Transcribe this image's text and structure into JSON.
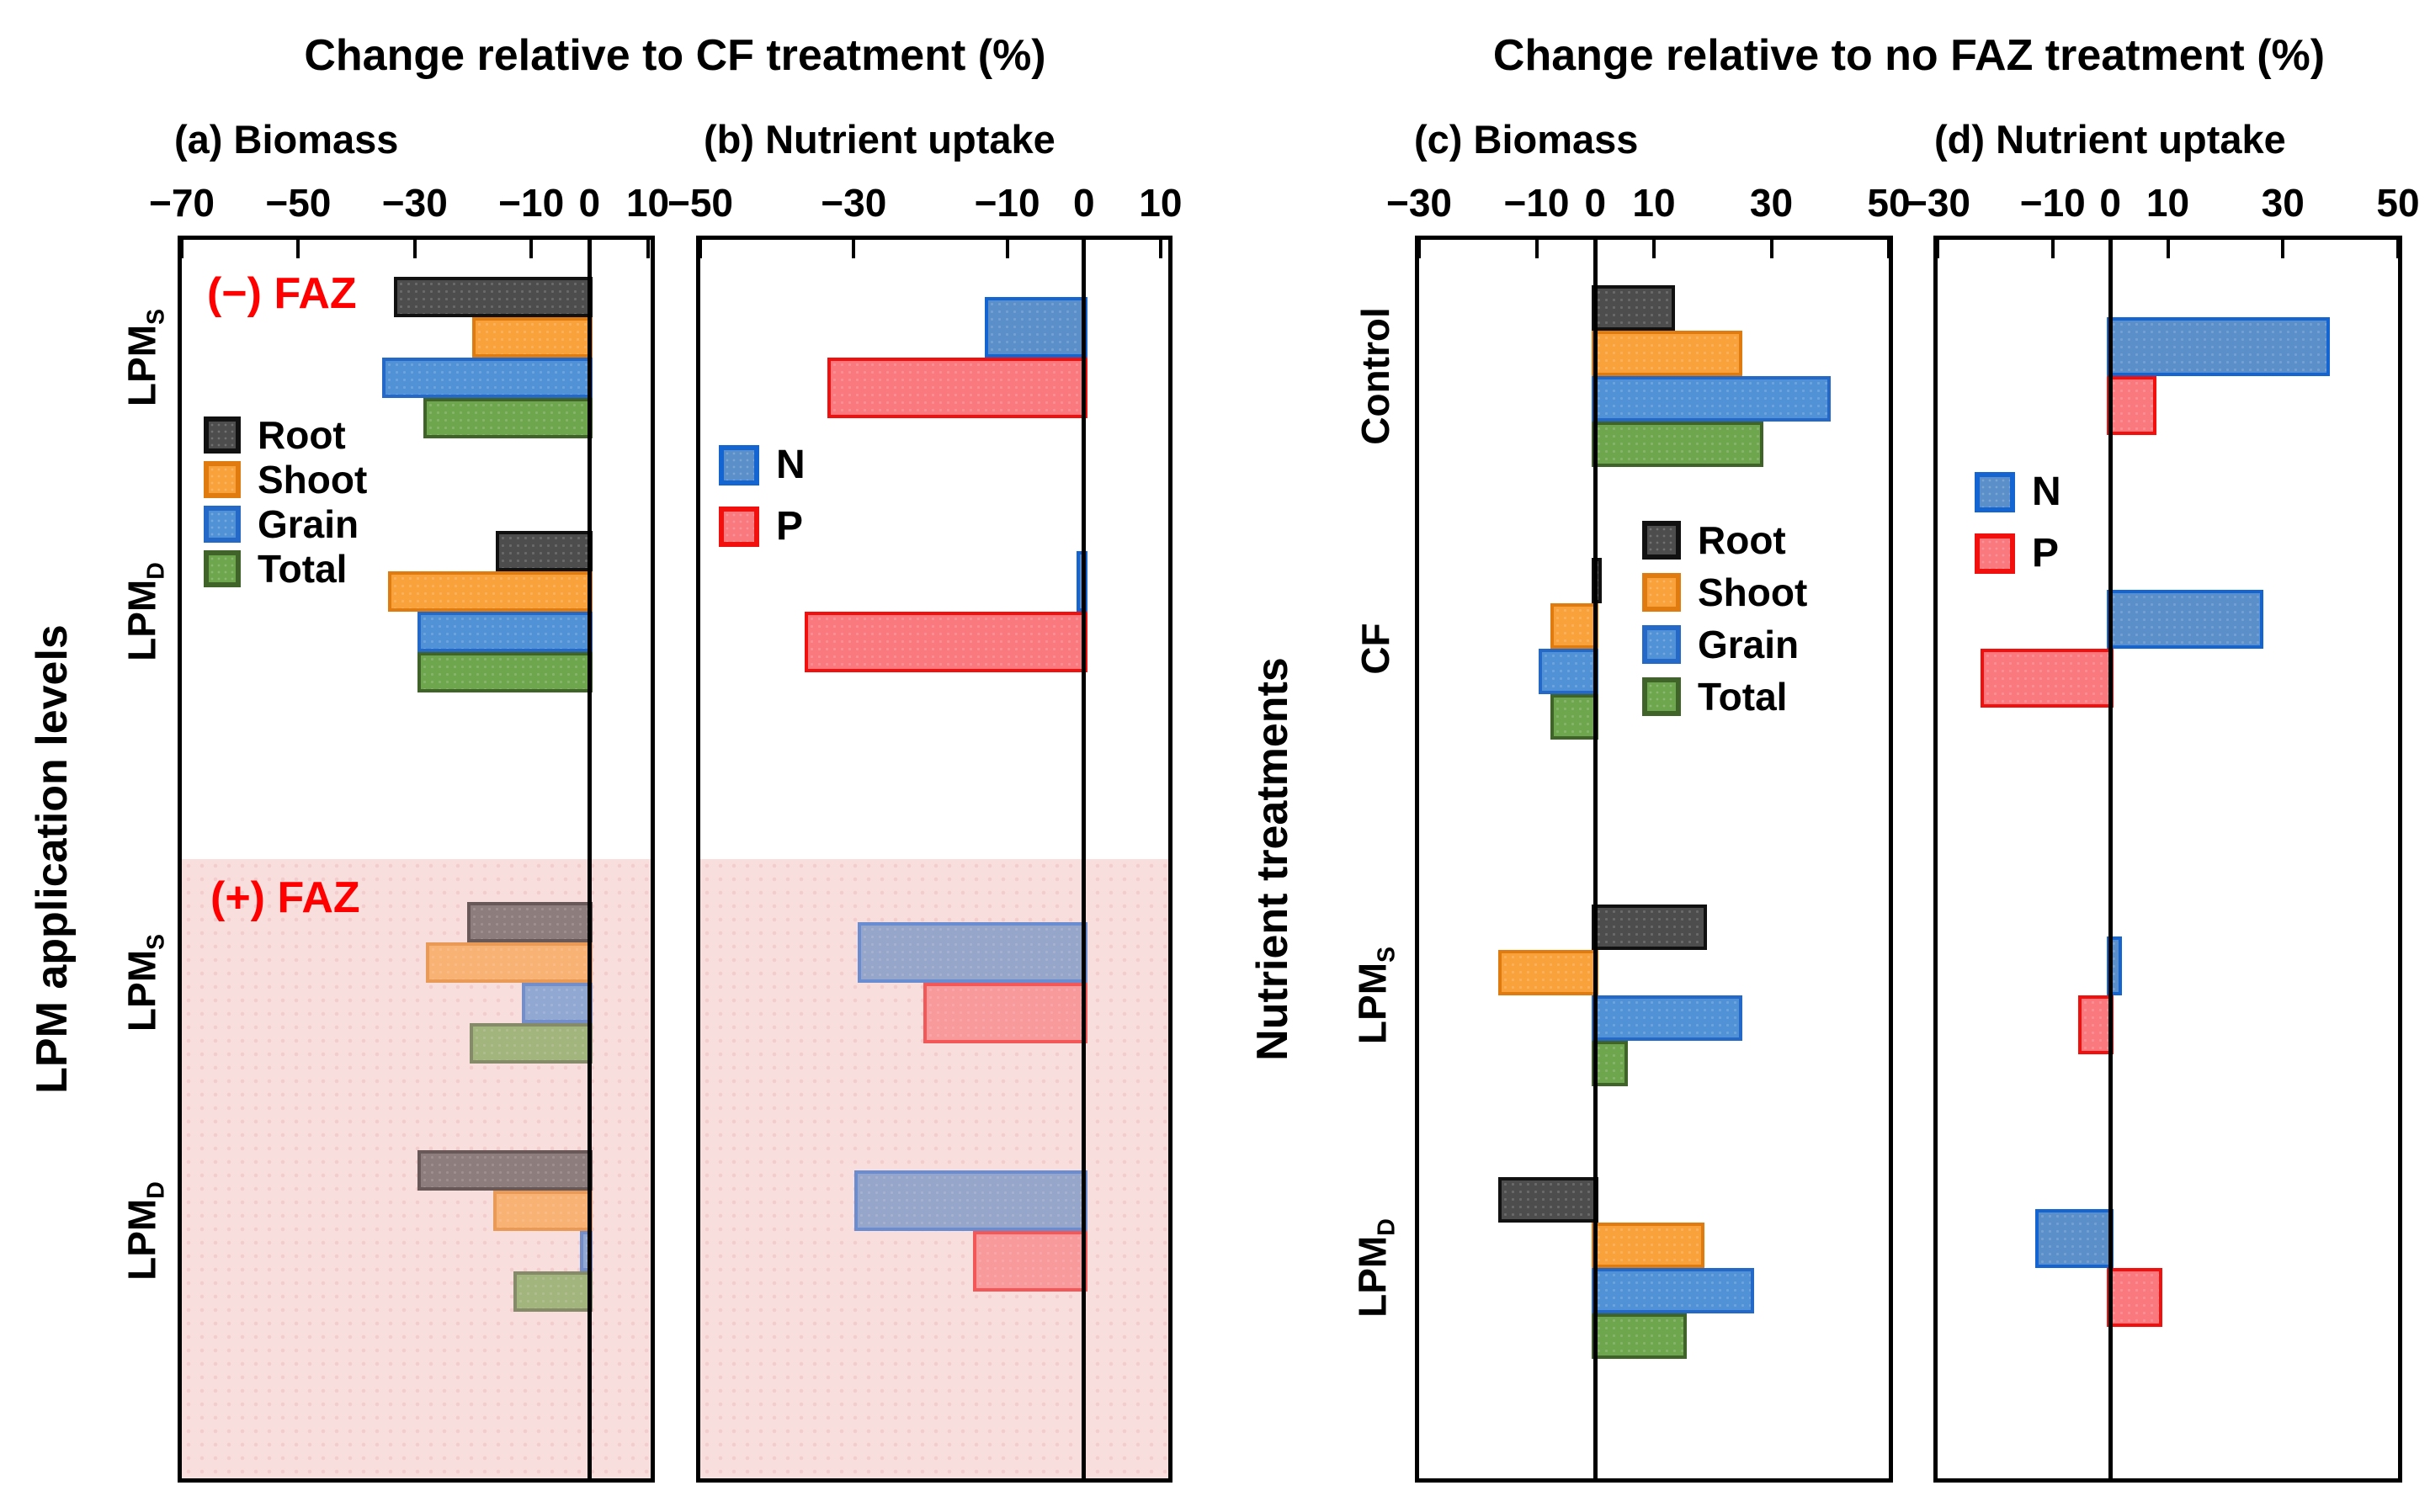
{
  "figure": {
    "title_left": "Change relative to CF treatment (%)",
    "title_right": "Change relative to no FAZ treatment (%)",
    "ylabel_left": "LPM application levels",
    "ylabel_right": "Nutrient treatments",
    "faz_minus_label": "(−) FAZ",
    "faz_plus_label": "(+) FAZ"
  },
  "colors": {
    "Root": {
      "fill": "#4d4d4d",
      "edge": "#111111"
    },
    "Shoot": {
      "fill": "#f9a23c",
      "edge": "#e07b10"
    },
    "Grain": {
      "fill": "#5192d6",
      "edge": "#2468c8"
    },
    "Total": {
      "fill": "#6ea64d",
      "edge": "#40632a"
    },
    "N": {
      "fill": "#5b8fc9",
      "edge": "#1464d2"
    },
    "P": {
      "fill": "#f9797e",
      "edge": "#f2100f"
    },
    "shaded_region": "#fbe9e9",
    "annotation_red": "#ff0000"
  },
  "chart_data": [
    {
      "id": "a",
      "label": "(a) Biomass",
      "type": "bar",
      "orientation": "horizontal",
      "group_title": "Change relative to CF treatment (%)",
      "xlim": [
        -70,
        10.5
      ],
      "ticks": [
        -70,
        -50,
        -30,
        -10,
        0,
        10
      ],
      "categories": [
        {
          "text": "LPM",
          "sub": "S",
          "group": "(−) FAZ"
        },
        {
          "text": "LPM",
          "sub": "D",
          "group": "(−) FAZ"
        },
        {
          "text": "LPM",
          "sub": "S",
          "group": "(+) FAZ"
        },
        {
          "text": "LPM",
          "sub": "D",
          "group": "(+) FAZ"
        }
      ],
      "series": [
        {
          "name": "Root",
          "values": [
            -33,
            -15.5,
            -20.5,
            -29
          ]
        },
        {
          "name": "Shoot",
          "values": [
            -19.5,
            -34,
            -27.5,
            -16
          ]
        },
        {
          "name": "Grain",
          "values": [
            -35,
            -29,
            -11,
            -1
          ]
        },
        {
          "name": "Total",
          "values": [
            -28,
            -29,
            -20,
            -12.5
          ]
        }
      ],
      "legend": [
        "Root",
        "Shoot",
        "Grain",
        "Total"
      ],
      "shaded_lower_half": true
    },
    {
      "id": "b",
      "label": "(b) Nutrient uptake",
      "type": "bar",
      "orientation": "horizontal",
      "group_title": "Change relative to CF treatment (%)",
      "xlim": [
        -50,
        11
      ],
      "ticks": [
        -50,
        -30,
        -10,
        0,
        10
      ],
      "categories": [
        {
          "text": "LPM",
          "sub": "S",
          "group": "(−) FAZ"
        },
        {
          "text": "LPM",
          "sub": "D",
          "group": "(−) FAZ"
        },
        {
          "text": "LPM",
          "sub": "S",
          "group": "(+) FAZ"
        },
        {
          "text": "LPM",
          "sub": "D",
          "group": "(+) FAZ"
        }
      ],
      "series": [
        {
          "name": "N",
          "values": [
            -12.5,
            -0.5,
            -29,
            -29.5
          ]
        },
        {
          "name": "P",
          "values": [
            -33,
            -36,
            -20.5,
            -14
          ]
        }
      ],
      "legend": [
        "N",
        "P"
      ],
      "shaded_lower_half": true
    },
    {
      "id": "c",
      "label": "(c) Biomass",
      "type": "bar",
      "orientation": "horizontal",
      "group_title": "Change relative to no FAZ treatment (%)",
      "xlim": [
        -30,
        50
      ],
      "ticks": [
        -30,
        -10,
        0,
        10,
        30,
        50
      ],
      "categories": [
        {
          "text": "Control"
        },
        {
          "text": "CF"
        },
        {
          "text": "LPM",
          "sub": "S"
        },
        {
          "text": "LPM",
          "sub": "D"
        }
      ],
      "series": [
        {
          "name": "Root",
          "values": [
            13,
            0.5,
            18.5,
            -16
          ]
        },
        {
          "name": "Shoot",
          "values": [
            24.5,
            -7,
            -16,
            18
          ]
        },
        {
          "name": "Grain",
          "values": [
            39.5,
            -9,
            24.5,
            26.5
          ]
        },
        {
          "name": "Total",
          "values": [
            28,
            -7,
            5,
            15
          ]
        }
      ],
      "legend": [
        "Root",
        "Shoot",
        "Grain",
        "Total"
      ],
      "shaded_lower_half": false
    },
    {
      "id": "d",
      "label": "(d) Nutrient uptake",
      "type": "bar",
      "orientation": "horizontal",
      "group_title": "Change relative to no FAZ treatment (%)",
      "xlim": [
        -30,
        50
      ],
      "ticks": [
        -30,
        -10,
        0,
        10,
        30,
        50
      ],
      "categories": [
        {
          "text": "Control"
        },
        {
          "text": "CF"
        },
        {
          "text": "LPM",
          "sub": "S"
        },
        {
          "text": "LPM",
          "sub": "D"
        }
      ],
      "series": [
        {
          "name": "N",
          "values": [
            37.5,
            26,
            1.5,
            -12.5
          ]
        },
        {
          "name": "P",
          "values": [
            7.5,
            -22,
            -5,
            8.5
          ]
        }
      ],
      "legend": [
        "N",
        "P"
      ],
      "shaded_lower_half": false
    }
  ]
}
